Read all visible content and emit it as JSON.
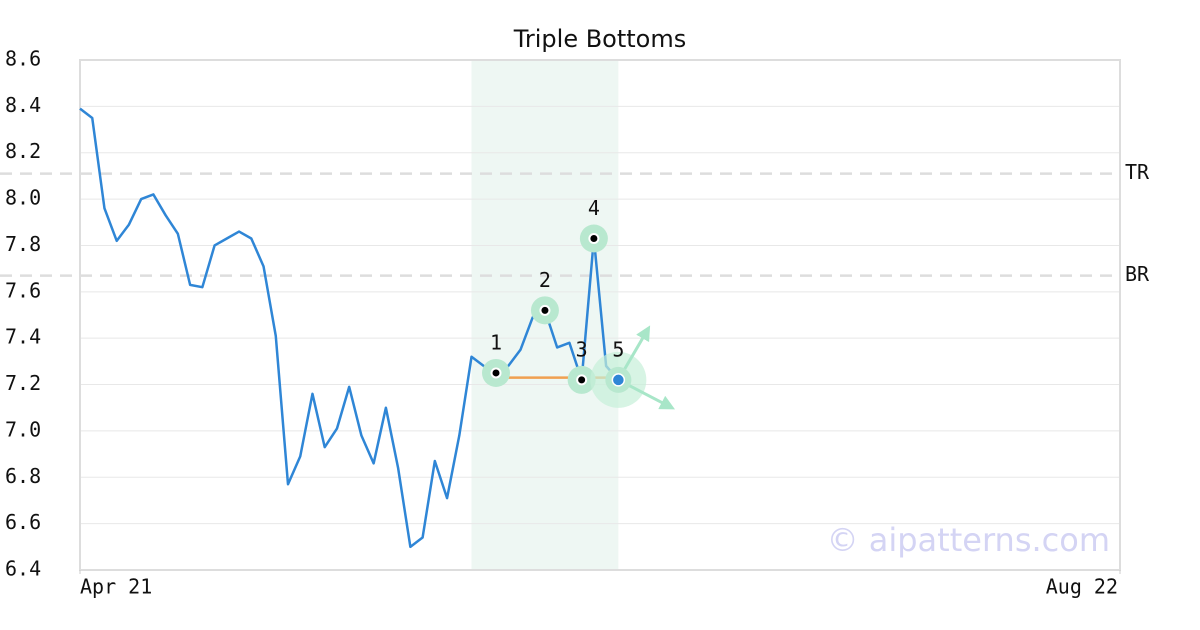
{
  "chart_data": {
    "type": "line",
    "title": "Triple Bottoms",
    "color": "#2f86d6",
    "x": [
      0,
      1,
      2,
      3,
      4,
      5,
      6,
      7,
      8,
      9,
      10,
      11,
      12,
      13,
      14,
      15,
      16,
      17,
      18,
      19,
      20,
      21,
      22,
      23,
      24,
      25,
      26,
      27,
      28,
      29,
      30,
      31,
      32,
      33,
      34,
      35,
      36,
      37,
      38,
      39,
      40,
      41,
      42,
      43,
      44
    ],
    "values": [
      8.39,
      8.35,
      7.96,
      7.82,
      7.89,
      8.0,
      8.02,
      7.93,
      7.85,
      7.63,
      7.62,
      7.8,
      7.83,
      7.86,
      7.83,
      7.71,
      7.41,
      6.77,
      6.89,
      7.16,
      6.93,
      7.01,
      7.19,
      6.98,
      6.86,
      7.1,
      6.84,
      6.5,
      6.54,
      6.87,
      6.71,
      6.98,
      7.32,
      7.28,
      7.25,
      7.28,
      7.35,
      7.49,
      7.52,
      7.36,
      7.38,
      7.22,
      7.83,
      7.28,
      7.22
    ],
    "xlim": [
      0,
      85
    ],
    "xticks": [
      {
        "value": 0,
        "label": "Apr 21"
      },
      {
        "value": 85,
        "label": "Aug 22"
      }
    ],
    "ylim": [
      6.4,
      8.6
    ],
    "yticks": [
      6.4,
      6.6,
      6.8,
      {
        "value": 7,
        "label": "7.0"
      },
      7.2,
      7.4,
      7.6,
      7.8,
      {
        "value": 8,
        "label": "8.0"
      },
      8.2,
      8.4,
      8.6
    ],
    "grid": true,
    "highlight": {
      "x_range": [
        32,
        44
      ],
      "color": "#eef7f3"
    },
    "pattern_points": {
      "labels": [
        "1",
        "2",
        "3",
        "4",
        "5"
      ],
      "x": [
        34,
        38,
        41,
        42,
        44
      ],
      "values": [
        7.25,
        7.52,
        7.22,
        7.83,
        7.22
      ]
    },
    "neckline": {
      "x": [
        34,
        44
      ],
      "values": [
        7.23,
        7.23
      ],
      "color": "#f0a050"
    },
    "levels": [
      {
        "label": "TR",
        "value": 8.11
      },
      {
        "label": "BR",
        "value": 7.67
      }
    ],
    "watermark": "© aipatterns.com"
  }
}
